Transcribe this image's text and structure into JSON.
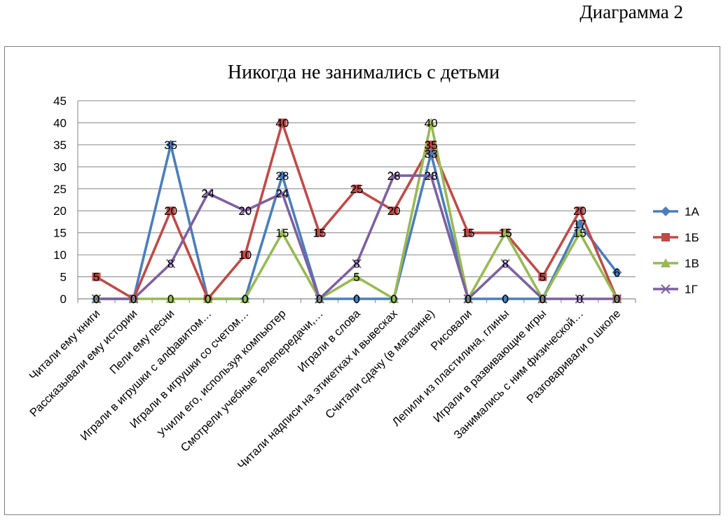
{
  "caption": "Диаграмма  2",
  "chart_data": {
    "type": "line",
    "title": "Никогда не занимались с детьми",
    "xlabel": "",
    "ylabel": "",
    "ylim": [
      0,
      45
    ],
    "yticks": [
      0,
      5,
      10,
      15,
      20,
      25,
      30,
      35,
      40,
      45
    ],
    "grid": true,
    "legend": "right",
    "categories": [
      "Читали ему книги",
      "Рассказывали ему истории",
      "Пели ему песни",
      "Играли в игрушки с алфавитом…",
      "Играли в игрушки со счетом…",
      "Учили его, используя компьютер",
      "Смотрели учебные телепередачи,…",
      "Играли в слова",
      "Читали надписи на этикетках и вывесках",
      "Считали сдачу (в магазине)",
      "Рисовали",
      "Лепили из пластилина, глины",
      "Играли в развивающие игры",
      "Занимались с ним физической…",
      "Разговаривали о школе"
    ],
    "series": [
      {
        "name": "1А",
        "color": "#4a7ebb",
        "marker": "diamond",
        "values": [
          0,
          0,
          35,
          0,
          0,
          28,
          0,
          0,
          0,
          33,
          0,
          0,
          0,
          17,
          6
        ]
      },
      {
        "name": "1Б",
        "color": "#be4b48",
        "marker": "square",
        "values": [
          5,
          0,
          20,
          0,
          10,
          40,
          15,
          25,
          20,
          35,
          15,
          15,
          5,
          20,
          0
        ]
      },
      {
        "name": "1В",
        "color": "#98b954",
        "marker": "triangle",
        "values": [
          0,
          0,
          0,
          0,
          0,
          15,
          0,
          5,
          0,
          40,
          0,
          15,
          0,
          15,
          0
        ]
      },
      {
        "name": "1Г",
        "color": "#7d60a0",
        "marker": "x",
        "values": [
          0,
          0,
          8,
          24,
          20,
          24,
          0,
          8,
          28,
          28,
          0,
          8,
          0,
          0,
          0
        ]
      }
    ]
  }
}
